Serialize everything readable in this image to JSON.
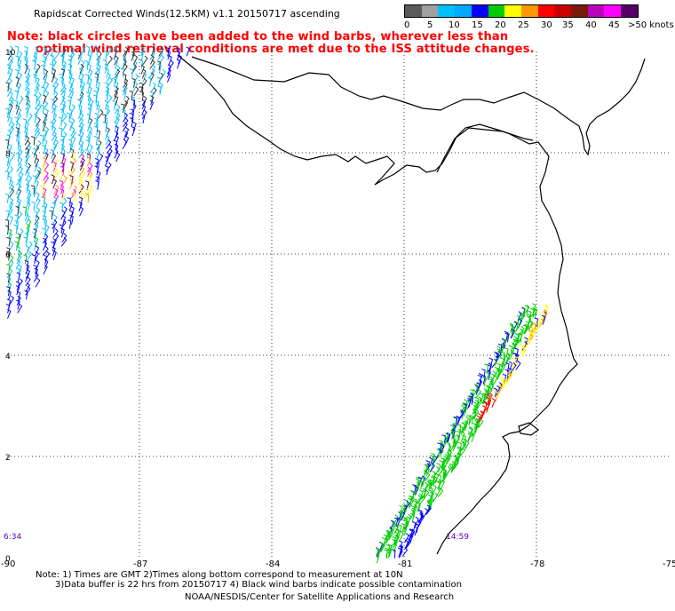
{
  "title": "Rapidscat Corrected Winds(12.5KM) v1.1 20150717 ascending",
  "note": {
    "line1": "Note: black circles have been added to the wind barbs, wherever less than",
    "line2": "optimal wind retrieval conditions are met due to the ISS attitude changes."
  },
  "legend": {
    "colors": [
      "#5a5a5a",
      "#a0a0a0",
      "#00c0ff",
      "#00aaff",
      "#0000ff",
      "#00cc00",
      "#ffff00",
      "#ff9900",
      "#ff0000",
      "#cc0000",
      "#7a1a0a",
      "#bb00bb",
      "#ff00ff",
      "#550066"
    ],
    "labels": [
      "0",
      "5",
      "10",
      "15",
      "20",
      "25",
      "30",
      "35",
      "40",
      "45",
      ">50 knots"
    ]
  },
  "axes": {
    "x_ticks": [
      "-90",
      "-87",
      "-84",
      "-81",
      "-78",
      "-75"
    ],
    "y_ticks": [
      "10",
      "8",
      "6",
      "4",
      "2",
      "0"
    ]
  },
  "times": {
    "left": "6:34",
    "right": "14:59"
  },
  "footer": {
    "line1": "Note: 1) Times are GMT 2)Times along bottom correspond to measurement at 10N",
    "line2": "3)Data buffer is 22 hrs from 20150717 4) Black wind barbs indicate possible contamination",
    "line3": "NOAA/NESDIS/Center for Satellite Applications and Research"
  }
}
